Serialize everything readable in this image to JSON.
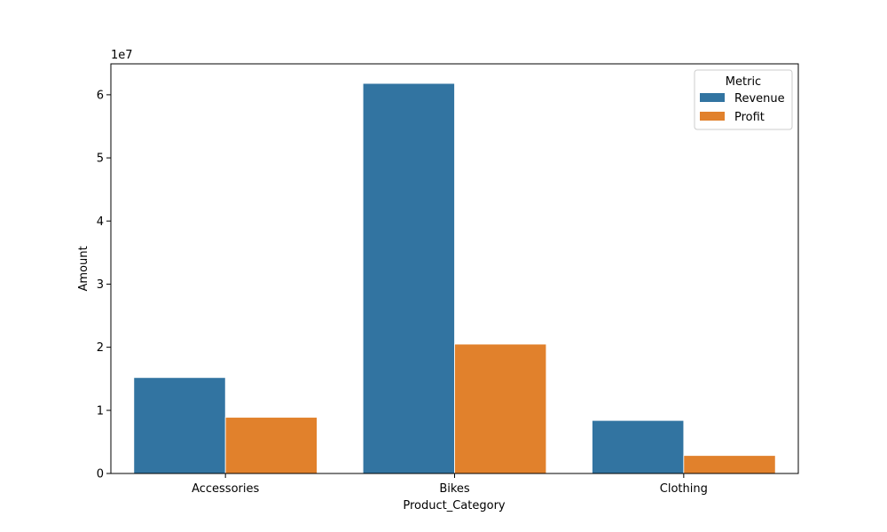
{
  "chart_data": {
    "type": "bar",
    "categories": [
      "Accessories",
      "Bikes",
      "Clothing"
    ],
    "series": [
      {
        "name": "Revenue",
        "values": [
          15200000,
          61800000,
          8400000
        ],
        "color": "#3274a1"
      },
      {
        "name": "Profit",
        "values": [
          8900000,
          20500000,
          2850000
        ],
        "color": "#e1812c"
      }
    ],
    "xlabel": "Product_Category",
    "ylabel": "Amount",
    "y_ticks": [
      0,
      1,
      2,
      3,
      4,
      5,
      6
    ],
    "y_tick_labels": [
      "0",
      "1",
      "2",
      "3",
      "4",
      "5",
      "6"
    ],
    "y_offset_text": "1e7",
    "ylim": [
      0,
      64900000
    ],
    "legend": {
      "title": "Metric",
      "position": "top-right"
    },
    "grid": false
  }
}
